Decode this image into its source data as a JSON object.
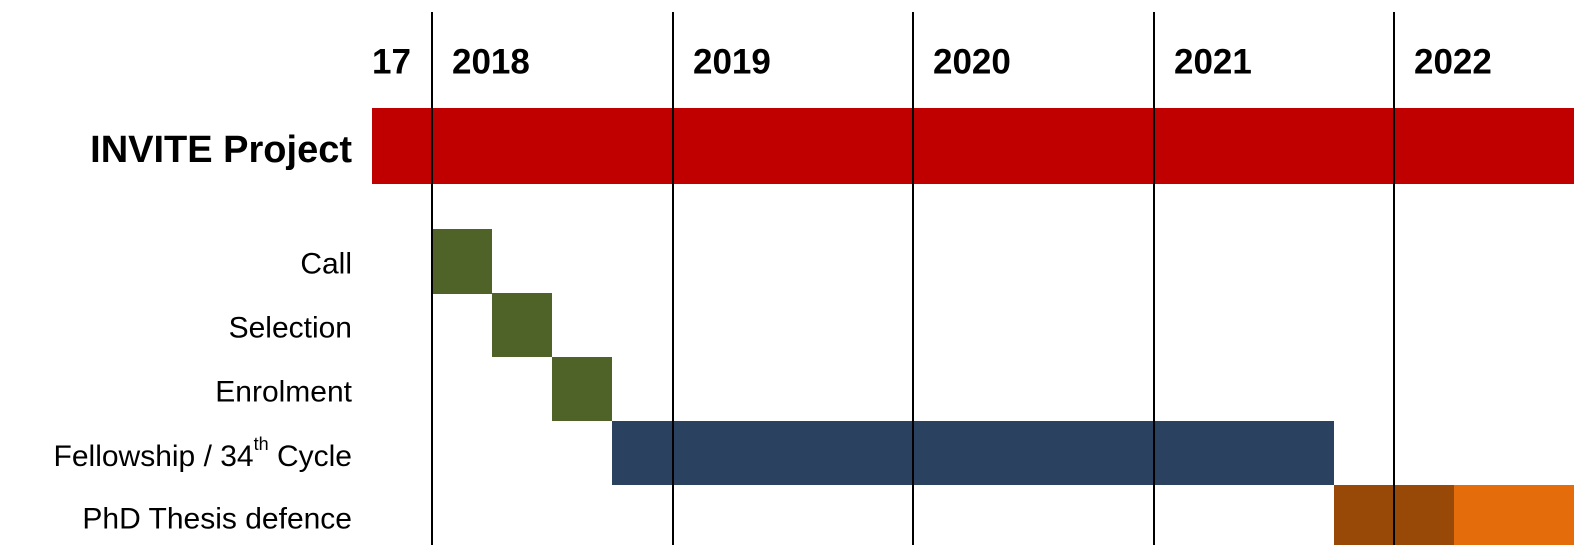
{
  "chart_data": {
    "type": "gantt",
    "years": [
      "17",
      "2018",
      "2019",
      "2020",
      "2021",
      "2022"
    ],
    "tasks": [
      {
        "label": "INVITE Project",
        "start": 2017.75,
        "end": 2023.0,
        "color": "#c00000"
      },
      {
        "label": "Call",
        "start": 2018.0,
        "end": 2018.25,
        "color": "#4f6228"
      },
      {
        "label": "Selection",
        "start": 2018.25,
        "end": 2018.5,
        "color": "#4f6228"
      },
      {
        "label": "Enrolment",
        "start": 2018.5,
        "end": 2018.75,
        "color": "#4f6228"
      },
      {
        "label": "Fellowship / 34th Cycle",
        "label_main": "Fellowship / 34",
        "label_sup": "th",
        "label_tail": " Cycle",
        "start": 2018.75,
        "end": 2021.75,
        "color": "#2a4260"
      },
      {
        "label": "PhD Thesis defence",
        "start": 2021.75,
        "end": 2022.25,
        "end_light": 2023.0,
        "color": "#984807",
        "color_light": "#e46c0a"
      }
    ]
  }
}
